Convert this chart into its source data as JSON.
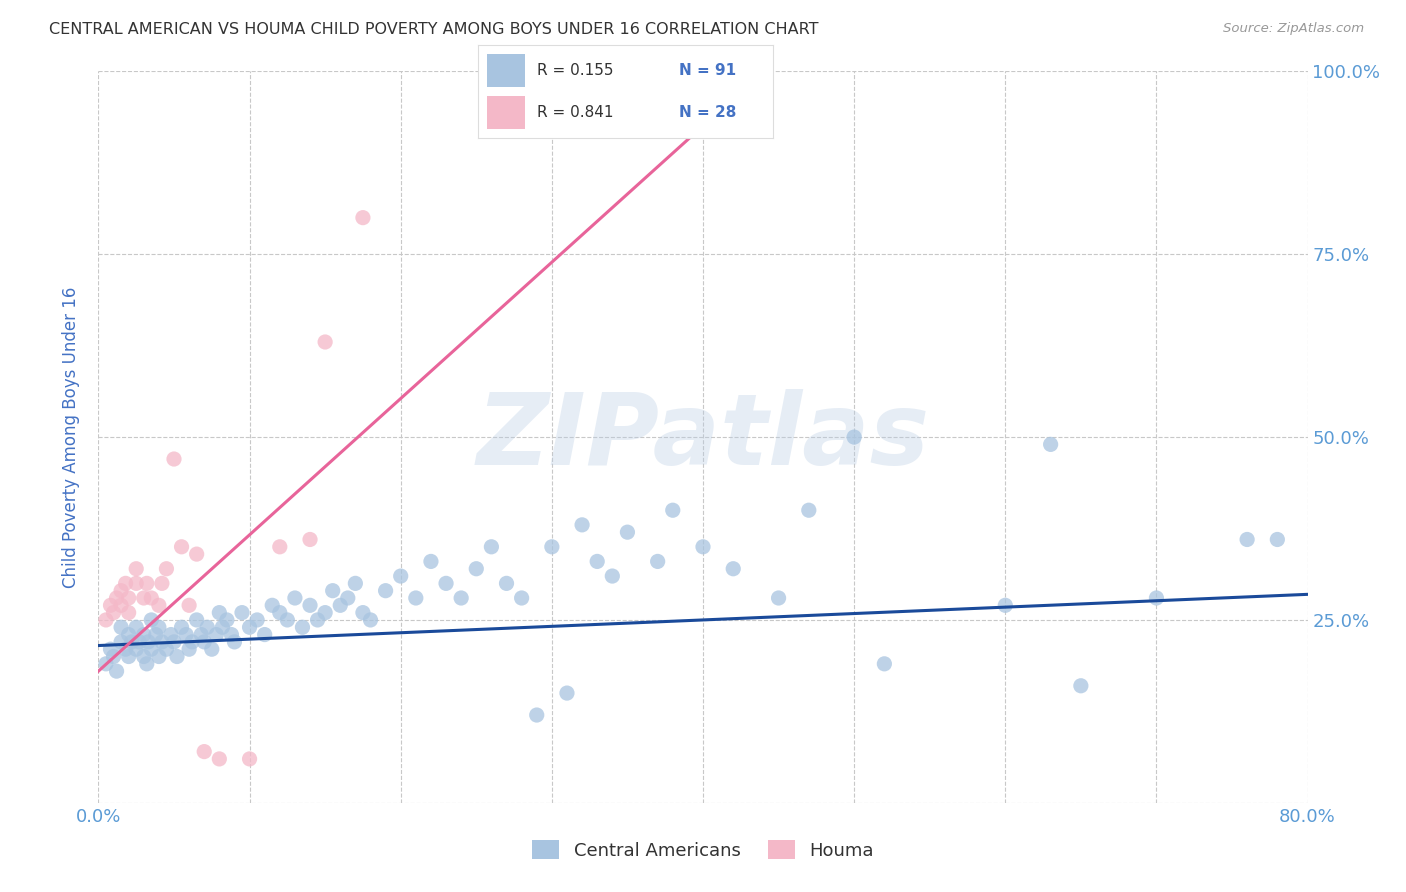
{
  "title": "CENTRAL AMERICAN VS HOUMA CHILD POVERTY AMONG BOYS UNDER 16 CORRELATION CHART",
  "source": "Source: ZipAtlas.com",
  "ylabel": "Child Poverty Among Boys Under 16",
  "xlim": [
    0.0,
    0.8
  ],
  "ylim": [
    0.0,
    1.0
  ],
  "xticks": [
    0.0,
    0.1,
    0.2,
    0.3,
    0.4,
    0.5,
    0.6,
    0.7,
    0.8
  ],
  "xticklabels": [
    "0.0%",
    "",
    "",
    "",
    "",
    "",
    "",
    "",
    "80.0%"
  ],
  "yticks": [
    0.0,
    0.25,
    0.5,
    0.75,
    1.0
  ],
  "yticklabels_right": [
    "",
    "25.0%",
    "50.0%",
    "75.0%",
    "100.0%"
  ],
  "watermark": "ZIPatlas",
  "blue_scatter_x": [
    0.005,
    0.008,
    0.01,
    0.012,
    0.015,
    0.015,
    0.018,
    0.02,
    0.02,
    0.022,
    0.025,
    0.025,
    0.027,
    0.03,
    0.03,
    0.032,
    0.033,
    0.035,
    0.035,
    0.038,
    0.04,
    0.04,
    0.042,
    0.045,
    0.048,
    0.05,
    0.052,
    0.055,
    0.058,
    0.06,
    0.062,
    0.065,
    0.068,
    0.07,
    0.072,
    0.075,
    0.078,
    0.08,
    0.082,
    0.085,
    0.088,
    0.09,
    0.095,
    0.1,
    0.105,
    0.11,
    0.115,
    0.12,
    0.125,
    0.13,
    0.135,
    0.14,
    0.145,
    0.15,
    0.155,
    0.16,
    0.165,
    0.17,
    0.175,
    0.18,
    0.19,
    0.2,
    0.21,
    0.22,
    0.23,
    0.24,
    0.25,
    0.26,
    0.27,
    0.28,
    0.29,
    0.3,
    0.31,
    0.32,
    0.33,
    0.34,
    0.35,
    0.37,
    0.38,
    0.4,
    0.42,
    0.45,
    0.47,
    0.5,
    0.52,
    0.6,
    0.63,
    0.65,
    0.7,
    0.76,
    0.78
  ],
  "blue_scatter_y": [
    0.19,
    0.21,
    0.2,
    0.18,
    0.22,
    0.24,
    0.21,
    0.2,
    0.23,
    0.22,
    0.21,
    0.24,
    0.22,
    0.2,
    0.23,
    0.19,
    0.22,
    0.21,
    0.25,
    0.23,
    0.2,
    0.24,
    0.22,
    0.21,
    0.23,
    0.22,
    0.2,
    0.24,
    0.23,
    0.21,
    0.22,
    0.25,
    0.23,
    0.22,
    0.24,
    0.21,
    0.23,
    0.26,
    0.24,
    0.25,
    0.23,
    0.22,
    0.26,
    0.24,
    0.25,
    0.23,
    0.27,
    0.26,
    0.25,
    0.28,
    0.24,
    0.27,
    0.25,
    0.26,
    0.29,
    0.27,
    0.28,
    0.3,
    0.26,
    0.25,
    0.29,
    0.31,
    0.28,
    0.33,
    0.3,
    0.28,
    0.32,
    0.35,
    0.3,
    0.28,
    0.12,
    0.35,
    0.15,
    0.38,
    0.33,
    0.31,
    0.37,
    0.33,
    0.4,
    0.35,
    0.32,
    0.28,
    0.4,
    0.5,
    0.19,
    0.27,
    0.49,
    0.16,
    0.28,
    0.36,
    0.36
  ],
  "pink_scatter_x": [
    0.005,
    0.008,
    0.01,
    0.012,
    0.015,
    0.015,
    0.018,
    0.02,
    0.02,
    0.025,
    0.025,
    0.03,
    0.032,
    0.035,
    0.04,
    0.042,
    0.045,
    0.05,
    0.055,
    0.06,
    0.065,
    0.07,
    0.08,
    0.1,
    0.12,
    0.14,
    0.15,
    0.175
  ],
  "pink_scatter_y": [
    0.25,
    0.27,
    0.26,
    0.28,
    0.27,
    0.29,
    0.3,
    0.26,
    0.28,
    0.3,
    0.32,
    0.28,
    0.3,
    0.28,
    0.27,
    0.3,
    0.32,
    0.47,
    0.35,
    0.27,
    0.34,
    0.07,
    0.06,
    0.06,
    0.35,
    0.36,
    0.63,
    0.8
  ],
  "blue_line_x": [
    0.0,
    0.8
  ],
  "blue_line_y": [
    0.215,
    0.285
  ],
  "pink_line_x": [
    0.0,
    0.44
  ],
  "pink_line_y": [
    0.18,
    1.0
  ],
  "blue_color": "#a8c4e0",
  "pink_color": "#f4b8c8",
  "blue_line_color": "#1a4a9a",
  "pink_line_color": "#e8649a",
  "grid_color": "#c8c8c8",
  "title_color": "#333333",
  "axis_label_color": "#4472c4",
  "tick_label_color": "#5b9bd5",
  "background_color": "#ffffff",
  "legend_R1": "R = 0.155",
  "legend_N1": "N = 91",
  "legend_R2": "R = 0.841",
  "legend_N2": "N = 28"
}
